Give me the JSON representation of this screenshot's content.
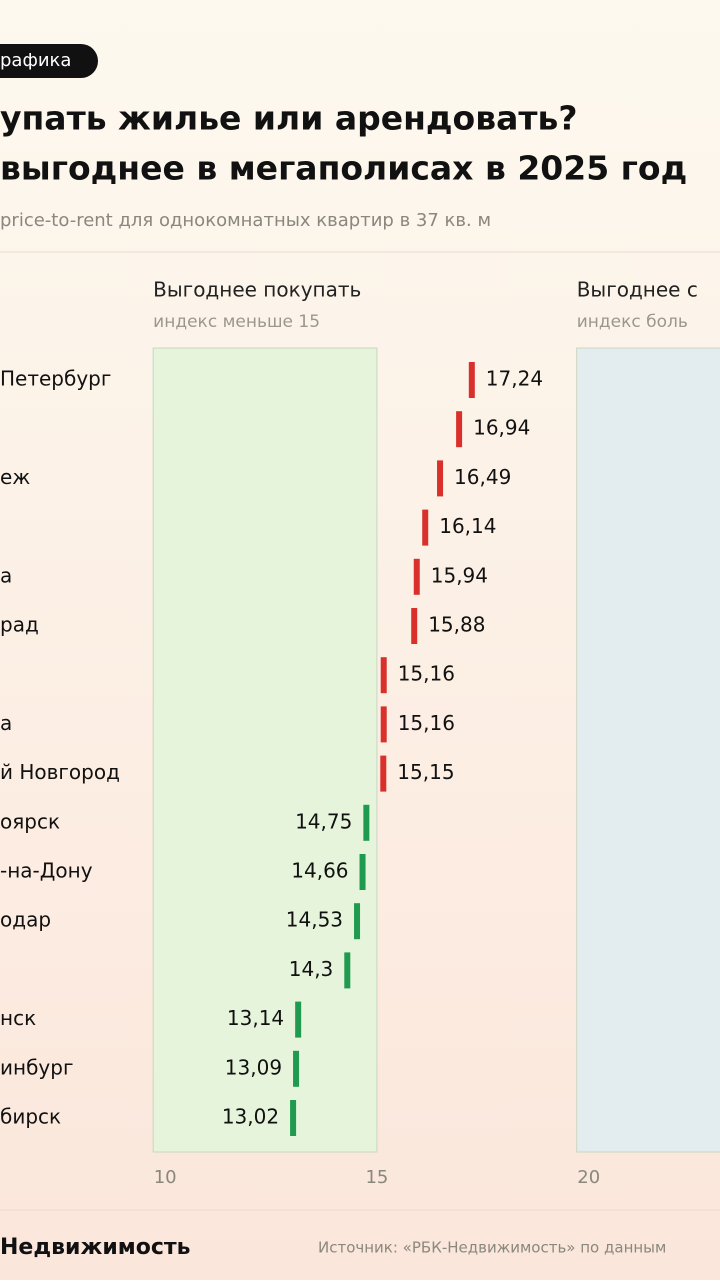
{
  "badge": "рафика",
  "chart_data": {
    "type": "dot",
    "title": [
      "упать жилье или арендовать?",
      "выгоднее в мегаполисах в 2025 год"
    ],
    "subtitle": "price-to-rent для однокомнатных квартир в 37 кв. м",
    "categories": [
      "Петербург",
      null,
      "еж",
      null,
      "а",
      "рад",
      null,
      "а",
      "й Новгород",
      "оярск",
      "-на-Дону",
      "одар",
      null,
      "нск",
      "инбург",
      "бирск"
    ],
    "values": [
      17.24,
      16.94,
      16.49,
      16.14,
      15.94,
      15.88,
      15.16,
      15.16,
      15.15,
      14.75,
      14.66,
      14.53,
      14.3,
      13.14,
      13.09,
      13.02
    ],
    "value_labels": [
      "17,24",
      "16,94",
      "16,49",
      "16,14",
      "15,94",
      "15,88",
      "15,16",
      "15,16",
      "15,15",
      "14,75",
      "14,66",
      "14,53",
      "14,3",
      "13,14",
      "13,09",
      "13,02"
    ],
    "threshold": 15,
    "color_above": "#d9302c",
    "color_below": "#1f9a4e",
    "xlim": [
      6.1,
      23.1
    ],
    "xticks": [
      10,
      15,
      20
    ],
    "zones": [
      {
        "label": "Выгоднее покупать",
        "sublabel": "индекс меньше 15",
        "from": 10,
        "to": 15,
        "color": "#e6f4dc"
      },
      {
        "label": "Выгоднее с",
        "sublabel": "индекс боль",
        "from": 20,
        "color": "#e3edef"
      }
    ]
  },
  "footer": {
    "brand": "Недвижимость",
    "source": "Источник: «РБК-Недвижимость» по данным"
  }
}
